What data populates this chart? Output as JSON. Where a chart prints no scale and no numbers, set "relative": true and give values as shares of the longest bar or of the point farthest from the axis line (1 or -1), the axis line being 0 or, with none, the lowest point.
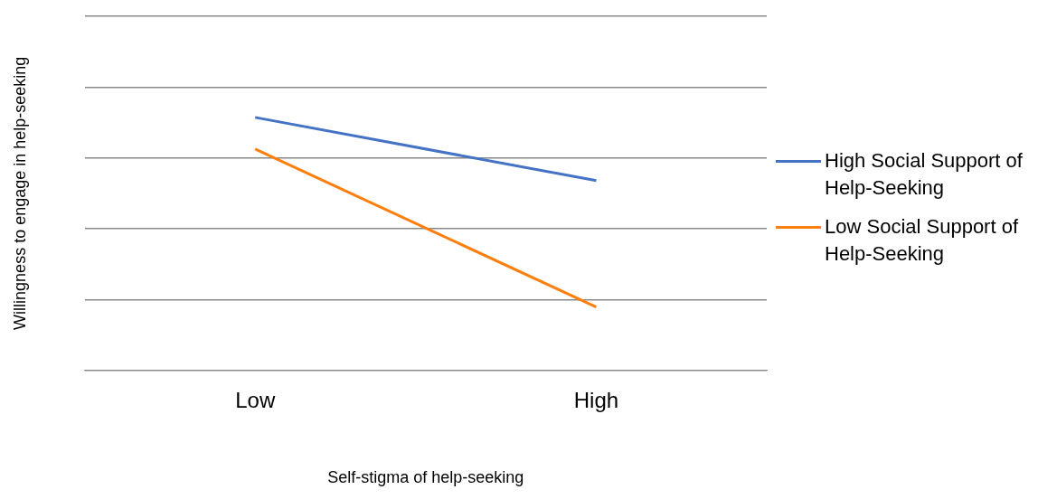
{
  "chart_data": {
    "type": "line",
    "relative": true,
    "xlabel": "Self-stigma of help-seeking",
    "ylabel": "Willingness to engage in help-seeking",
    "categories": [
      "Low",
      "High"
    ],
    "series": [
      {
        "name": "High Social Support of Help-Seeking",
        "color": "#4472c4",
        "values": [
          1,
          0.75
        ]
      },
      {
        "name": "Low Social Support of Help-Seeking",
        "color": "#ff7f0e",
        "values": [
          0.875,
          0.25
        ]
      }
    ],
    "grid": "y",
    "legend": "right",
    "marker": "none",
    "line_style": "solid"
  }
}
